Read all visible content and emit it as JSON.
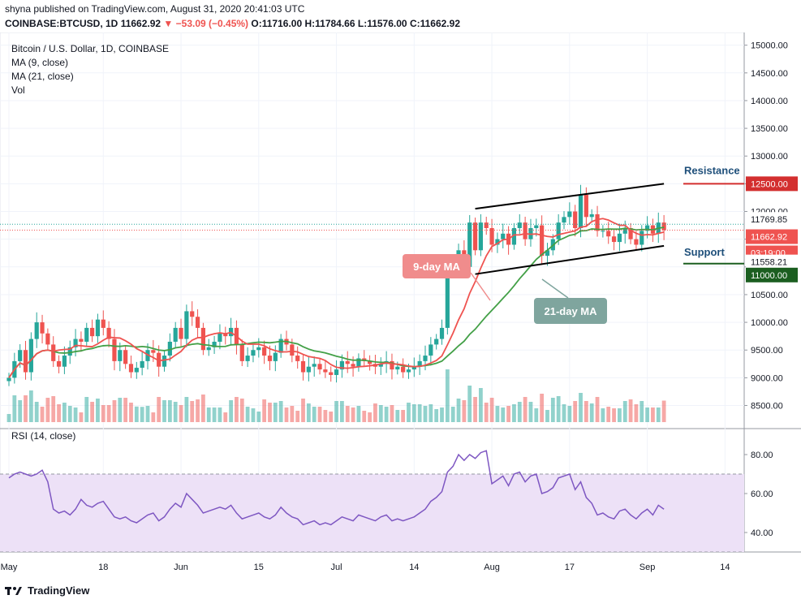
{
  "header": {
    "publisher_line": "shyna published on TradingView.com, August 31, 2020 20:41:03 UTC",
    "symbol": "COINBASE:BTCUSD, 1D",
    "last": "11662.92",
    "change": "−53.09 (−0.45%)",
    "open": "O:11716.00",
    "high": "H:11784.66",
    "low": "L:11576.00",
    "close": "C:11662.92"
  },
  "legend": {
    "title": "Bitcoin / U.S. Dollar, 1D, COINBASE",
    "ma9": "MA (9, close)",
    "ma21": "MA (21, close)",
    "vol": "Vol"
  },
  "rsi_label": "RSI (14, close)",
  "footer": {
    "brand": "TradingView"
  },
  "colors": {
    "up": "#26a69a",
    "down": "#ef5350",
    "ma9": "#ef5350",
    "ma21": "#43a047",
    "resistance": "#d32f2f",
    "support": "#1b5e20",
    "rsi": "#7e57c2"
  },
  "chart_data": [
    {
      "type": "candlestick",
      "title": "Bitcoin / U.S. Dollar, 1D, COINBASE",
      "ylim": [
        8200,
        15200
      ],
      "y_ticks": [
        "15000.00",
        "14500.00",
        "14000.00",
        "13500.00",
        "13000.00",
        "12500.00",
        "12000.00",
        "11500.00",
        "11000.00",
        "10500.00",
        "10000.00",
        "9500.00",
        "9000.00",
        "8500.00"
      ],
      "x_ticks": [
        "May",
        "18",
        "Jun",
        "15",
        "Jul",
        "14",
        "Aug",
        "17",
        "Sep",
        "14"
      ],
      "price_labels": [
        {
          "value": "12500.00",
          "kind": "resistance"
        },
        {
          "value": "11769.85",
          "kind": "high"
        },
        {
          "value": "11662.92",
          "kind": "last"
        },
        {
          "value": "03:19:00",
          "kind": "countdown"
        },
        {
          "value": "11558.21",
          "kind": "low"
        },
        {
          "value": "11000.00",
          "kind": "support"
        }
      ],
      "annotations": {
        "resistance": "Resistance",
        "support": "Support",
        "ma9": "9-day MA",
        "ma21": "21-day MA"
      },
      "resistance_level": 12500,
      "support_level": 11000,
      "channel": {
        "upper": [
          [
            "Jul 26",
            12050
          ],
          [
            "Aug 31",
            12500
          ]
        ],
        "lower": [
          [
            "Jul 26",
            10870
          ],
          [
            "Aug 31",
            11380
          ]
        ]
      },
      "closes": [
        9000,
        9300,
        9500,
        9100,
        9700,
        10000,
        9800,
        9600,
        9300,
        9200,
        9400,
        9550,
        9700,
        9650,
        9900,
        9750,
        10050,
        9900,
        9700,
        9300,
        9500,
        9250,
        9100,
        9180,
        9300,
        9500,
        9450,
        9200,
        9400,
        9650,
        9900,
        9700,
        10200,
        10100,
        9900,
        9500,
        9550,
        9650,
        9800,
        9750,
        9900,
        9600,
        9300,
        9400,
        9500,
        9550,
        9400,
        9300,
        9450,
        9700,
        9600,
        9400,
        9300,
        9100,
        9200,
        9250,
        9150,
        9100,
        9050,
        9150,
        9300,
        9250,
        9200,
        9350,
        9300,
        9250,
        9200,
        9250,
        9300,
        9150,
        9200,
        9100,
        9150,
        9200,
        9300,
        9400,
        9600,
        9700,
        9900,
        11000,
        11000,
        11300,
        11000,
        11800,
        11300,
        11800,
        11700,
        11400,
        11500,
        11600,
        11400,
        11700,
        11800,
        11500,
        11700,
        11750,
        11200,
        11300,
        11500,
        11800,
        11900,
        12000,
        11700,
        12300,
        11900,
        11950,
        11650,
        11650,
        11550,
        11450,
        11600,
        11700,
        11500,
        11400,
        11650,
        11750,
        11600,
        11800,
        11663
      ],
      "ma9_label": "MA (9, close)",
      "ma21_label": "MA (21, close)"
    },
    {
      "type": "line",
      "title": "RSI (14, close)",
      "ylim": [
        30,
        90
      ],
      "y_ticks": [
        "80.00",
        "60.00",
        "40.00"
      ],
      "band": [
        30,
        70
      ],
      "values": [
        68,
        70,
        71,
        70,
        69,
        70,
        72,
        66,
        52,
        50,
        51,
        49,
        52,
        57,
        54,
        53,
        55,
        56,
        52,
        48,
        47,
        48,
        46,
        45,
        47,
        49,
        50,
        46,
        48,
        52,
        55,
        53,
        60,
        57,
        54,
        50,
        51,
        52,
        53,
        52,
        54,
        50,
        47,
        48,
        49,
        50,
        48,
        47,
        49,
        53,
        50,
        48,
        47,
        44,
        45,
        46,
        44,
        45,
        44,
        46,
        48,
        47,
        46,
        49,
        48,
        47,
        46,
        48,
        49,
        46,
        47,
        46,
        47,
        48,
        50,
        52,
        56,
        58,
        61,
        71,
        74,
        80,
        77,
        80,
        78,
        81,
        82,
        65,
        67,
        69,
        64,
        70,
        71,
        66,
        69,
        70,
        60,
        61,
        63,
        68,
        69,
        70,
        62,
        66,
        58,
        55,
        49,
        50,
        48,
        47,
        51,
        52,
        49,
        47,
        50,
        52,
        49,
        54,
        52
      ]
    }
  ]
}
